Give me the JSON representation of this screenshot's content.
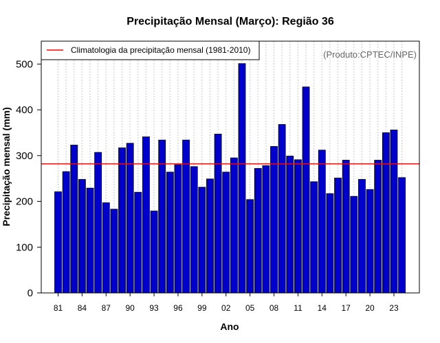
{
  "chart_data": {
    "type": "bar",
    "title": "Precipitação Mensal (Março): Região 36",
    "xlabel": "Ano",
    "ylabel": "Precipitação mensal (mm)",
    "credit": "(Produto:CPTEC/INPE)",
    "legend": {
      "label": "Climatologia da precipitação mensal (1981-2010)",
      "position": "top-left"
    },
    "climatology": 282,
    "ylim": [
      0,
      550
    ],
    "yticks": [
      0,
      100,
      200,
      300,
      400,
      500
    ],
    "ytick_labels": [
      "0",
      "100",
      "200",
      "300",
      "400",
      "500"
    ],
    "grid": "vertical dotted lines per year",
    "categories": [
      "1981",
      "1982",
      "1983",
      "1984",
      "1985",
      "1986",
      "1987",
      "1988",
      "1989",
      "1990",
      "1991",
      "1992",
      "1993",
      "1994",
      "1995",
      "1996",
      "1997",
      "1998",
      "1999",
      "2000",
      "2001",
      "2002",
      "2003",
      "2004",
      "2005",
      "2006",
      "2007",
      "2008",
      "2009",
      "2010",
      "2011",
      "2012",
      "2013",
      "2014",
      "2015",
      "2016",
      "2017",
      "2018",
      "2019",
      "2020",
      "2021",
      "2022",
      "2023",
      "2024"
    ],
    "values": [
      221,
      265,
      323,
      248,
      229,
      307,
      197,
      183,
      317,
      327,
      220,
      341,
      179,
      334,
      264,
      280,
      334,
      276,
      231,
      249,
      347,
      264,
      295,
      501,
      204,
      272,
      278,
      320,
      368,
      299,
      291,
      450,
      243,
      312,
      217,
      251,
      290,
      211,
      248,
      226,
      290,
      350,
      356,
      252
    ],
    "xtick_years": [
      1981,
      1984,
      1987,
      1990,
      1993,
      1996,
      1999,
      2002,
      2005,
      2008,
      2011,
      2014,
      2017,
      2020,
      2023
    ],
    "xtick_labels": [
      "81",
      "84",
      "87",
      "90",
      "93",
      "96",
      "99",
      "02",
      "05",
      "08",
      "11",
      "14",
      "17",
      "20",
      "23"
    ],
    "colors": {
      "bar": "#0000cc",
      "bar_edge": "#000000",
      "climatology_line": "#ff0000",
      "grid": "#c8c8c8"
    }
  }
}
